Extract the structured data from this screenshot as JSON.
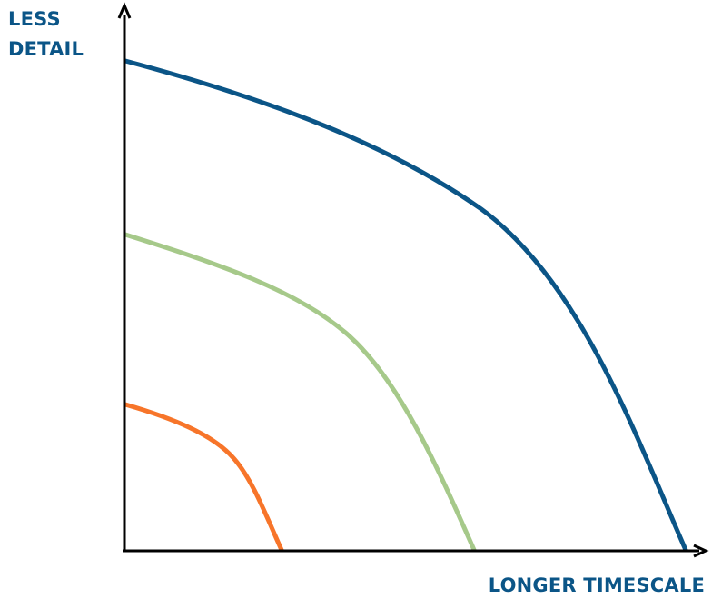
{
  "y_axis": {
    "label_line1": "LESS",
    "label_line2": "DETAIL"
  },
  "x_axis": {
    "label": "LONGER TIMESCALE"
  },
  "colors": {
    "axis": "#000000",
    "label": "#0b5587",
    "curve_outer": "#0b5587",
    "curve_middle": "#a6c98a",
    "curve_inner": "#f7752a"
  },
  "curves": [
    "outer",
    "middle",
    "inner"
  ]
}
